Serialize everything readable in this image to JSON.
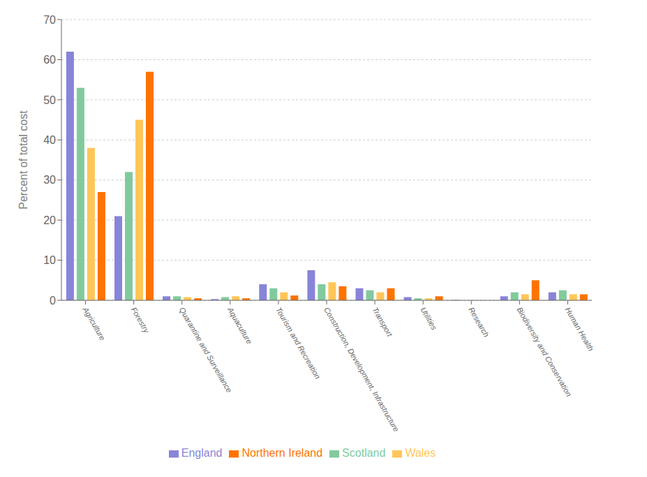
{
  "chart_data": {
    "type": "bar",
    "categories": [
      "Agriculture",
      "Forestry",
      "Quarantine and Surveillance",
      "Aquaculture",
      "Tourism and Recreation",
      "Construction, Development, Infrastructure",
      "Transport",
      "Utilities",
      "Research",
      "Biodiversity and Conservation",
      "Human Health"
    ],
    "series": [
      {
        "name": "England",
        "color": "#8884d8",
        "values": [
          62,
          21,
          1.0,
          0.3,
          4.0,
          7.5,
          3.0,
          0.8,
          0.1,
          1.0,
          2.0
        ]
      },
      {
        "name": "Scotland",
        "color": "#82ca9d",
        "values": [
          53,
          32,
          1.0,
          0.8,
          3.0,
          4.0,
          2.5,
          0.5,
          0.0,
          2.0,
          2.5
        ]
      },
      {
        "name": "Wales",
        "color": "#ffc658",
        "values": [
          38,
          45,
          0.8,
          1.0,
          2.0,
          4.5,
          2.0,
          0.5,
          0.0,
          1.5,
          1.5
        ]
      },
      {
        "name": "Northern Ireland",
        "color": "#ff7300",
        "values": [
          27,
          57,
          0.5,
          0.5,
          1.2,
          3.5,
          3.0,
          1.0,
          0.0,
          5.0,
          1.5
        ]
      }
    ],
    "ylabel": "Percent of total cost",
    "ylim": [
      0,
      70
    ],
    "yticks": [
      0,
      10,
      20,
      30,
      40,
      50,
      60,
      70
    ],
    "grid": true,
    "legend": "bottom"
  }
}
